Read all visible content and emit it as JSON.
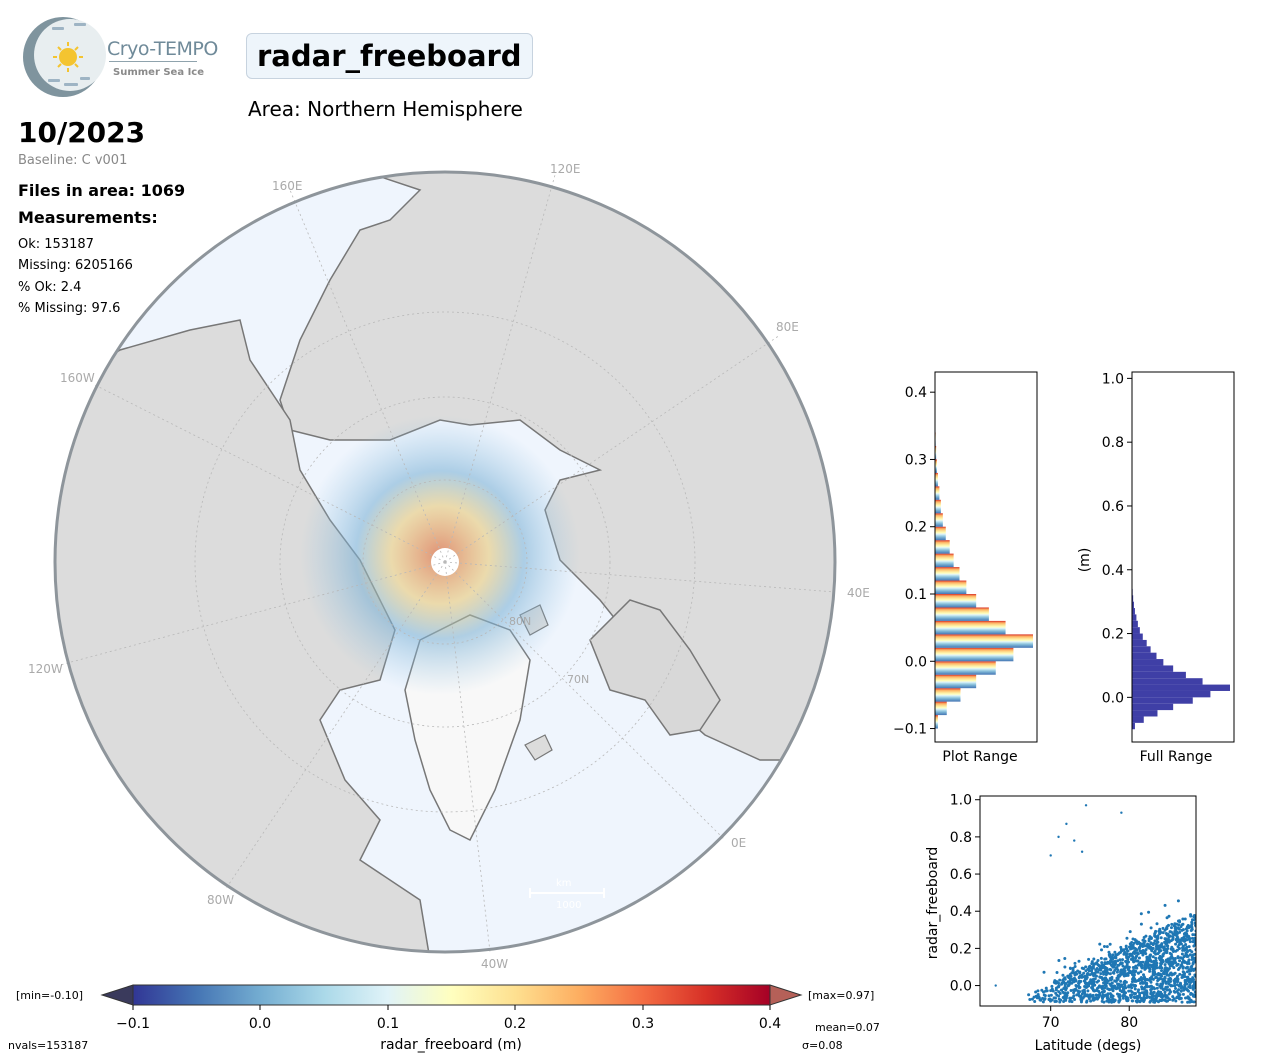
{
  "header": {
    "logo_name": "Cryo-TEMPO",
    "logo_sub": "Summer Sea Ice",
    "parameter": "radar_freeboard",
    "area": "Area: Northern Hemisphere",
    "date": "10/2023",
    "baseline": "Baseline: C v001",
    "files": "Files in area: 1069",
    "measurements_label": "Measurements:",
    "ok": "Ok: 153187",
    "missing": "Missing: 6205166",
    "pct_ok": "% Ok: 2.4",
    "pct_missing": "% Missing: 97.6"
  },
  "map": {
    "lon_labels": [
      "120E",
      "160E",
      "80E",
      "160W",
      "40E",
      "120W",
      "0E",
      "80W",
      "40W"
    ],
    "lat_labels": [
      "80N",
      "70N"
    ],
    "scale_bar": "1000",
    "scale_unit": "km",
    "colors": {
      "ocean": "#eff5fd",
      "land": "#dadada",
      "coast": "#7a7a7a",
      "frame": "#8e959b"
    }
  },
  "colorbar": {
    "min_label": "[min=-0.10]",
    "max_label": "[max=0.97]",
    "ticks": [
      "−0.1",
      "0.0",
      "0.1",
      "0.2",
      "0.3",
      "0.4"
    ],
    "label": "radar_freeboard (m)",
    "mean": "mean=0.07",
    "sigma": "σ=0.08",
    "nvals": "nvals=153187",
    "range": [
      -0.1,
      0.4
    ],
    "palette": [
      "#313695",
      "#4575b4",
      "#74add1",
      "#abd9e9",
      "#e0f3f8",
      "#ffffbf",
      "#fee090",
      "#fdae61",
      "#f46d43",
      "#d73027",
      "#a50026"
    ]
  },
  "chart_data": [
    {
      "type": "bar",
      "orientation": "horizontal",
      "xlabel": "Plot Range",
      "ylabel": "",
      "ylim": [
        -0.12,
        0.43
      ],
      "yticks": [
        "−0.1",
        "0.0",
        "0.1",
        "0.2",
        "0.3",
        "0.4"
      ],
      "bins": [
        -0.1,
        -0.08,
        -0.06,
        -0.04,
        -0.02,
        0.0,
        0.02,
        0.04,
        0.06,
        0.08,
        0.1,
        0.12,
        0.14,
        0.16,
        0.18,
        0.2,
        0.22,
        0.24,
        0.26,
        0.28,
        0.3,
        0.32,
        0.34
      ],
      "values": [
        0.03,
        0.12,
        0.26,
        0.42,
        0.62,
        0.8,
        1.0,
        0.72,
        0.55,
        0.42,
        0.32,
        0.25,
        0.19,
        0.15,
        0.11,
        0.08,
        0.06,
        0.045,
        0.03,
        0.02,
        0.012,
        0.007,
        0.003
      ]
    },
    {
      "type": "bar",
      "orientation": "horizontal",
      "xlabel": "Full Range",
      "ylabel": "(m)",
      "ylim": [
        -0.14,
        1.02
      ],
      "yticks": [
        "0.0",
        "0.2",
        "0.4",
        "0.6",
        "0.8",
        "1.0"
      ],
      "bins": [
        -0.1,
        -0.08,
        -0.06,
        -0.04,
        -0.02,
        0.0,
        0.02,
        0.04,
        0.06,
        0.08,
        0.1,
        0.12,
        0.14,
        0.16,
        0.18,
        0.2,
        0.22,
        0.24,
        0.26,
        0.28,
        0.3,
        0.32,
        0.34
      ],
      "values": [
        0.03,
        0.12,
        0.26,
        0.42,
        0.62,
        0.8,
        1.0,
        0.72,
        0.55,
        0.42,
        0.32,
        0.25,
        0.19,
        0.15,
        0.11,
        0.08,
        0.06,
        0.045,
        0.03,
        0.02,
        0.012,
        0.007,
        0.003
      ],
      "color": "#3f3fa6"
    },
    {
      "type": "scatter",
      "xlabel": "Latitude (degs)",
      "ylabel": "radar_freeboard",
      "xlim": [
        61,
        88.5
      ],
      "ylim": [
        -0.11,
        1.02
      ],
      "xticks": [
        "70",
        "80"
      ],
      "yticks": [
        "0.0",
        "0.2",
        "0.4",
        "0.6",
        "0.8",
        "1.0"
      ],
      "color": "#1f77b4",
      "outliers": [
        [
          63,
          0
        ],
        [
          74.5,
          0.97
        ],
        [
          79,
          0.93
        ],
        [
          72,
          0.87
        ],
        [
          71,
          0.8
        ],
        [
          73,
          0.78
        ],
        [
          70,
          0.7
        ],
        [
          74,
          0.72
        ]
      ]
    }
  ]
}
